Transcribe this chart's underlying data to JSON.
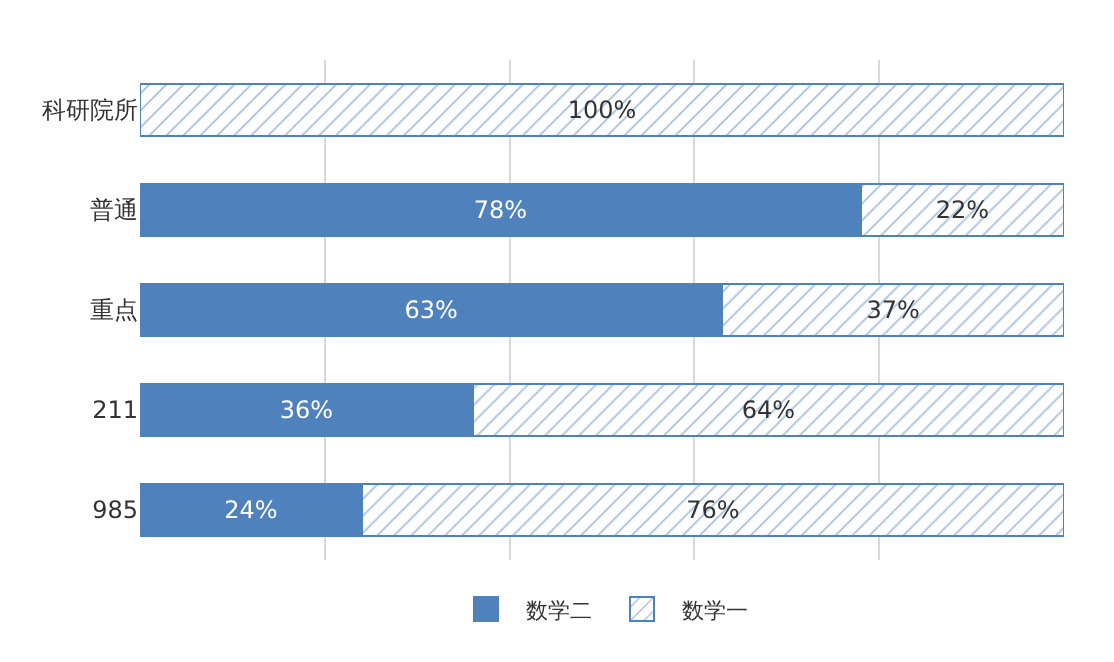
{
  "chart_data": {
    "type": "bar",
    "orientation": "horizontal",
    "stacked": true,
    "categories": [
      "科研院所",
      "普通",
      "重点",
      "211",
      "985"
    ],
    "series": [
      {
        "name": "数学二",
        "color": "#4f81bd",
        "values": [
          0,
          78,
          63,
          36,
          24
        ],
        "value_labels": [
          null,
          "78%",
          "63%",
          "36%",
          "24%"
        ]
      },
      {
        "name": "数学一",
        "color": "#4f81bd",
        "values": [
          100,
          22,
          37,
          64,
          76
        ],
        "value_labels": [
          "100%",
          "22%",
          "37%",
          "64%",
          "76%"
        ]
      }
    ],
    "xlim": [
      0,
      100
    ],
    "xticks": [
      {
        "value": 20,
        "label": null
      },
      {
        "value": 40,
        "label": null
      },
      {
        "value": 60,
        "label": null
      },
      {
        "value": 80,
        "label": null
      }
    ],
    "tick_labels": "y",
    "grid": "x",
    "legend": "bottom"
  }
}
